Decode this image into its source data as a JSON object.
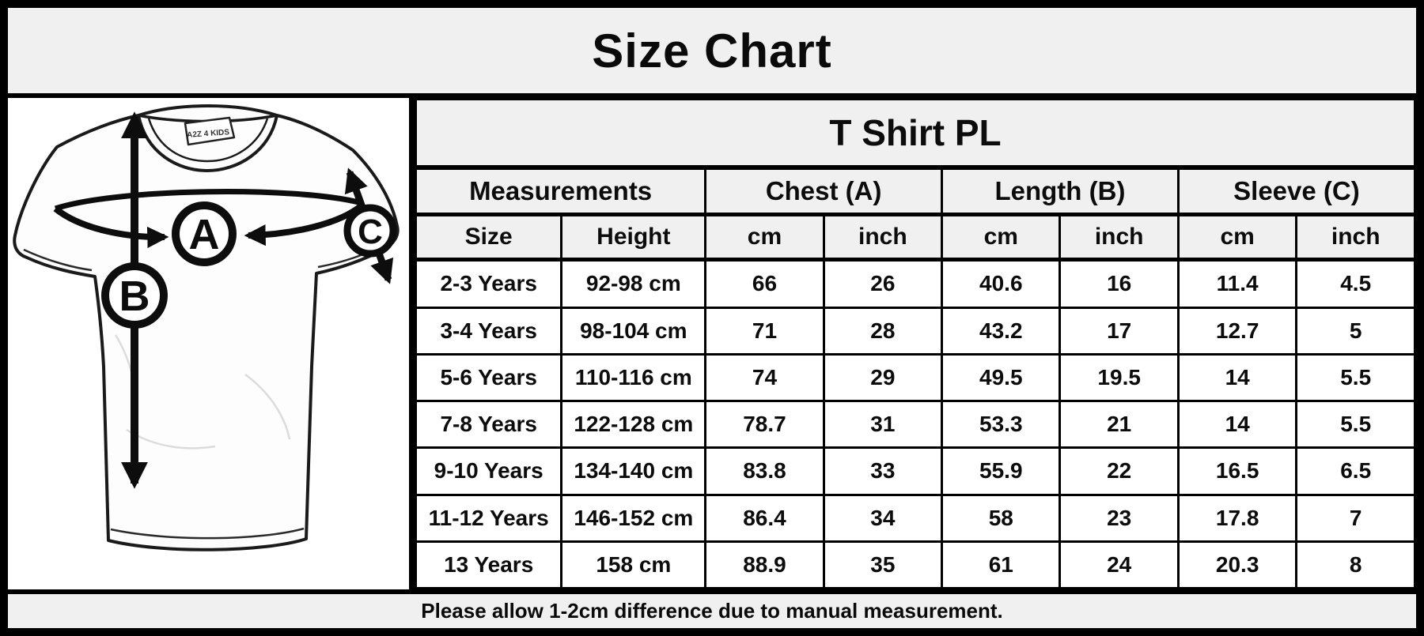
{
  "title": "Size Chart",
  "diagram": {
    "brand_label": "A2Z 4 KIDS",
    "chest_letter": "A",
    "length_letter": "B",
    "sleeve_letter": "C"
  },
  "table": {
    "title": "T Shirt PL",
    "group_headers": [
      "Measurements",
      "Chest (A)",
      "Length (B)",
      "Sleeve (C)"
    ],
    "sub_headers": [
      "Size",
      "Height",
      "cm",
      "inch",
      "cm",
      "inch",
      "cm",
      "inch"
    ],
    "rows": [
      [
        "2-3 Years",
        "92-98 cm",
        "66",
        "26",
        "40.6",
        "16",
        "11.4",
        "4.5"
      ],
      [
        "3-4 Years",
        "98-104 cm",
        "71",
        "28",
        "43.2",
        "17",
        "12.7",
        "5"
      ],
      [
        "5-6 Years",
        "110-116 cm",
        "74",
        "29",
        "49.5",
        "19.5",
        "14",
        "5.5"
      ],
      [
        "7-8 Years",
        "122-128 cm",
        "78.7",
        "31",
        "53.3",
        "21",
        "14",
        "5.5"
      ],
      [
        "9-10 Years",
        "134-140 cm",
        "83.8",
        "33",
        "55.9",
        "22",
        "16.5",
        "6.5"
      ],
      [
        "11-12 Years",
        "146-152 cm",
        "86.4",
        "34",
        "58",
        "23",
        "17.8",
        "7"
      ],
      [
        "13 Years",
        "158 cm",
        "88.9",
        "35",
        "61",
        "24",
        "20.3",
        "8"
      ]
    ]
  },
  "footer_note": "Please allow 1-2cm difference due to manual measurement.",
  "colors": {
    "border": "#000000",
    "header_bg": "#f0f0f0",
    "row_bg": "#ffffff",
    "ink": "#0c0c0c"
  },
  "chart_data": {
    "type": "table",
    "title": "T Shirt PL",
    "columns": [
      "Size",
      "Height",
      "Chest (A) cm",
      "Chest (A) inch",
      "Length (B) cm",
      "Length (B) inch",
      "Sleeve (C) cm",
      "Sleeve (C) inch"
    ],
    "rows": [
      [
        "2-3 Years",
        "92-98 cm",
        66,
        26,
        40.6,
        16,
        11.4,
        4.5
      ],
      [
        "3-4 Years",
        "98-104 cm",
        71,
        28,
        43.2,
        17,
        12.7,
        5
      ],
      [
        "5-6 Years",
        "110-116 cm",
        74,
        29,
        49.5,
        19.5,
        14,
        5.5
      ],
      [
        "7-8 Years",
        "122-128 cm",
        78.7,
        31,
        53.3,
        21,
        14,
        5.5
      ],
      [
        "9-10 Years",
        "134-140 cm",
        83.8,
        33,
        55.9,
        22,
        16.5,
        6.5
      ],
      [
        "11-12 Years",
        "146-152 cm",
        86.4,
        34,
        58,
        23,
        17.8,
        7
      ],
      [
        "13 Years",
        "158 cm",
        88.9,
        35,
        61,
        24,
        20.3,
        8
      ]
    ],
    "note": "Please allow 1-2cm difference due to manual measurement."
  }
}
